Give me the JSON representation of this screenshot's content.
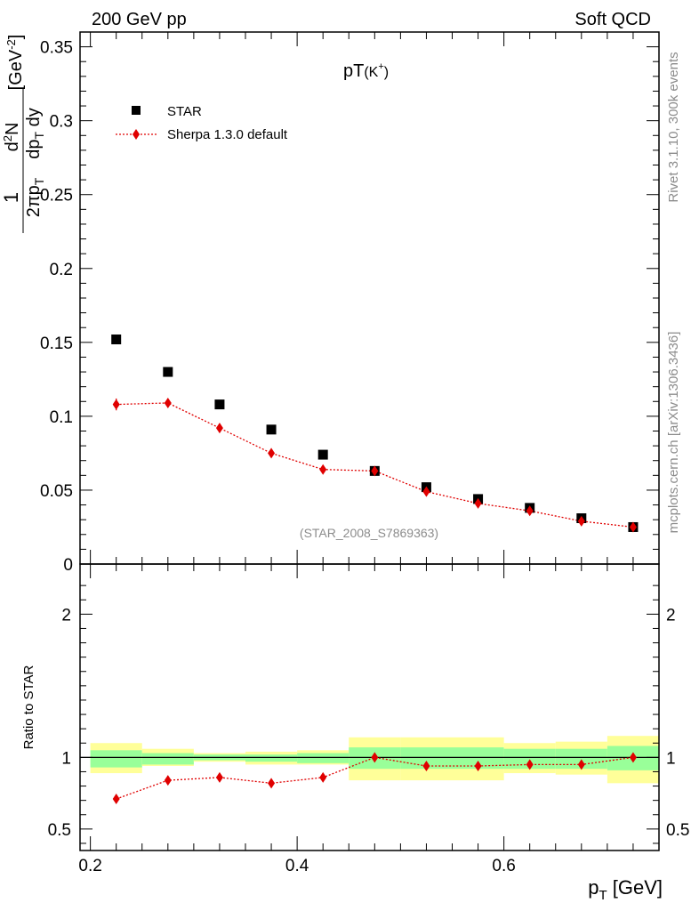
{
  "header": {
    "left": "200 GeV pp",
    "right": "Soft QCD"
  },
  "side_text": {
    "rivet": "Rivet 3.1.10,  300k events",
    "mcplots": "mcplots.cern.ch [arXiv:1306.3436]"
  },
  "colors": {
    "data": "#000000",
    "mc": "#e00000",
    "band_inner": "#99ff99",
    "band_outer": "#ffff99"
  },
  "chart_data": [
    {
      "type": "scatter",
      "title": "pT(K⁺)",
      "title_main": "pT",
      "title_sub": "(K",
      "title_sup": "+",
      "title_close": ")",
      "ylabel": "1/(2πpT) d²N/(dpT dy) [GeV⁻²]",
      "watermark": "(STAR_2008_S7869363)",
      "xlim": [
        0.19,
        0.75
      ],
      "ylim": [
        0,
        0.36
      ],
      "yticks": [
        0,
        0.05,
        0.1,
        0.15,
        0.2,
        0.25,
        0.3,
        0.35
      ],
      "ytick_labels": [
        "0",
        "0.05",
        "0.1",
        "0.15",
        "0.2",
        "0.25",
        "0.3",
        "0.35"
      ],
      "legend": {
        "data_label": "STAR",
        "mc_label": "Sherpa 1.3.0 default",
        "position": "top-left"
      },
      "series": [
        {
          "name": "STAR",
          "x": [
            0.225,
            0.275,
            0.325,
            0.375,
            0.425,
            0.475,
            0.525,
            0.575,
            0.625,
            0.675,
            0.725
          ],
          "values": [
            0.152,
            0.13,
            0.108,
            0.091,
            0.074,
            0.063,
            0.052,
            0.044,
            0.038,
            0.031,
            0.025
          ]
        },
        {
          "name": "Sherpa 1.3.0 default",
          "x": [
            0.225,
            0.275,
            0.325,
            0.375,
            0.425,
            0.475,
            0.525,
            0.575,
            0.625,
            0.675,
            0.725
          ],
          "values": [
            0.108,
            0.109,
            0.092,
            0.075,
            0.064,
            0.063,
            0.049,
            0.041,
            0.036,
            0.029,
            0.025
          ],
          "errors": [
            0.004,
            0.003,
            0.003,
            0.002,
            0.002,
            0.002,
            0.002,
            0.002,
            0.002,
            0.002,
            0.002
          ]
        }
      ]
    },
    {
      "type": "scatter",
      "title": "Ratio to STAR",
      "xlabel": "p_T [GeV]",
      "xlabel_main": "p",
      "xlabel_sub": "T",
      "xlabel_unit": " [GeV]",
      "ylabel": "Ratio to STAR",
      "xlim": [
        0.19,
        0.75
      ],
      "ylim": [
        0.35,
        2.35
      ],
      "xticks": [
        0.2,
        0.4,
        0.6
      ],
      "xtick_labels": [
        "0.2",
        "0.4",
        "0.6"
      ],
      "yticks": [
        0.5,
        1,
        2
      ],
      "ytick_labels": [
        "0.5",
        "1",
        "2"
      ],
      "bins": [
        {
          "lo": 0.2,
          "hi": 0.25,
          "inner": [
            0.93,
            1.05
          ],
          "outer": [
            0.89,
            1.1
          ]
        },
        {
          "lo": 0.25,
          "hi": 0.3,
          "inner": [
            0.95,
            1.03
          ],
          "outer": [
            0.94,
            1.06
          ]
        },
        {
          "lo": 0.3,
          "hi": 0.35,
          "inner": [
            0.98,
            1.02
          ],
          "outer": [
            0.97,
            1.03
          ]
        },
        {
          "lo": 0.35,
          "hi": 0.4,
          "inner": [
            0.97,
            1.02
          ],
          "outer": [
            0.95,
            1.04
          ]
        },
        {
          "lo": 0.4,
          "hi": 0.45,
          "inner": [
            0.96,
            1.03
          ],
          "outer": [
            0.95,
            1.05
          ]
        },
        {
          "lo": 0.45,
          "hi": 0.5,
          "inner": [
            0.92,
            1.07
          ],
          "outer": [
            0.84,
            1.14
          ]
        },
        {
          "lo": 0.5,
          "hi": 0.55,
          "inner": [
            0.92,
            1.07
          ],
          "outer": [
            0.84,
            1.14
          ]
        },
        {
          "lo": 0.55,
          "hi": 0.6,
          "inner": [
            0.92,
            1.07
          ],
          "outer": [
            0.84,
            1.14
          ]
        },
        {
          "lo": 0.6,
          "hi": 0.65,
          "inner": [
            0.92,
            1.06
          ],
          "outer": [
            0.89,
            1.1
          ]
        },
        {
          "lo": 0.65,
          "hi": 0.7,
          "inner": [
            0.92,
            1.06
          ],
          "outer": [
            0.88,
            1.11
          ]
        },
        {
          "lo": 0.7,
          "hi": 0.75,
          "inner": [
            0.91,
            1.08
          ],
          "outer": [
            0.82,
            1.15
          ]
        }
      ],
      "series": [
        {
          "name": "Sherpa 1.3.0 default / STAR",
          "x": [
            0.225,
            0.275,
            0.325,
            0.375,
            0.425,
            0.475,
            0.525,
            0.575,
            0.625,
            0.675,
            0.725
          ],
          "values": [
            0.71,
            0.84,
            0.86,
            0.82,
            0.86,
            1.0,
            0.94,
            0.94,
            0.95,
            0.95,
            1.0
          ],
          "errors": [
            0.03,
            0.03,
            0.03,
            0.03,
            0.03,
            0.03,
            0.03,
            0.03,
            0.03,
            0.03,
            0.03
          ]
        }
      ]
    }
  ]
}
